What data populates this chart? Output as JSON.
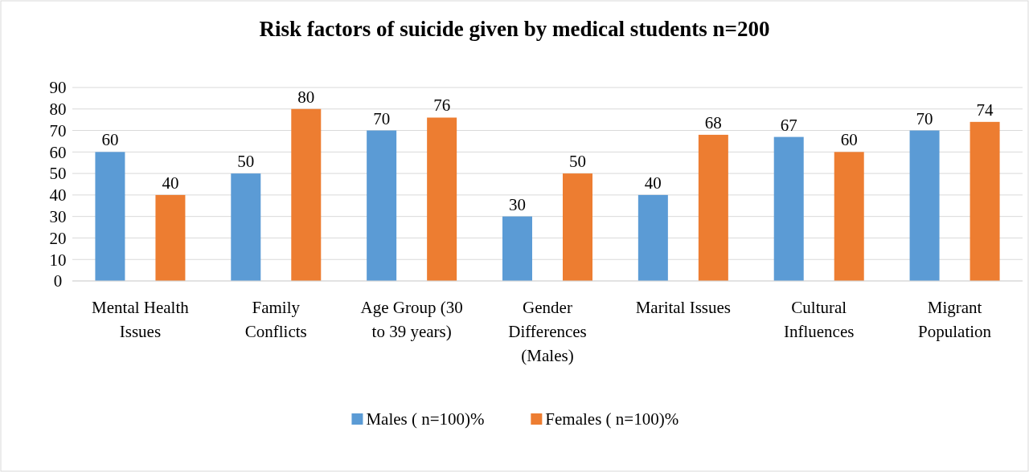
{
  "chart_data": {
    "type": "bar",
    "title": "Risk factors of suicide given by medical students n=200",
    "categories": [
      "Mental Health Issues",
      "Family Conflicts",
      "Age Group (30 to 39 years)",
      "Gender Differences (Males)",
      "Marital Issues",
      "Cultural Influences",
      "Migrant Population"
    ],
    "series": [
      {
        "name": "Males ( n=100)%",
        "color": "#5b9bd5",
        "values": [
          60,
          50,
          70,
          30,
          40,
          67,
          70
        ]
      },
      {
        "name": "Females ( n=100)%",
        "color": "#ed7d31",
        "values": [
          40,
          80,
          76,
          50,
          68,
          60,
          74
        ]
      }
    ],
    "ylim": [
      0,
      90
    ],
    "yticks": [
      0,
      10,
      20,
      30,
      40,
      50,
      60,
      70,
      80,
      90
    ],
    "grid": "y",
    "legend": "bottom",
    "data_labels": true
  }
}
